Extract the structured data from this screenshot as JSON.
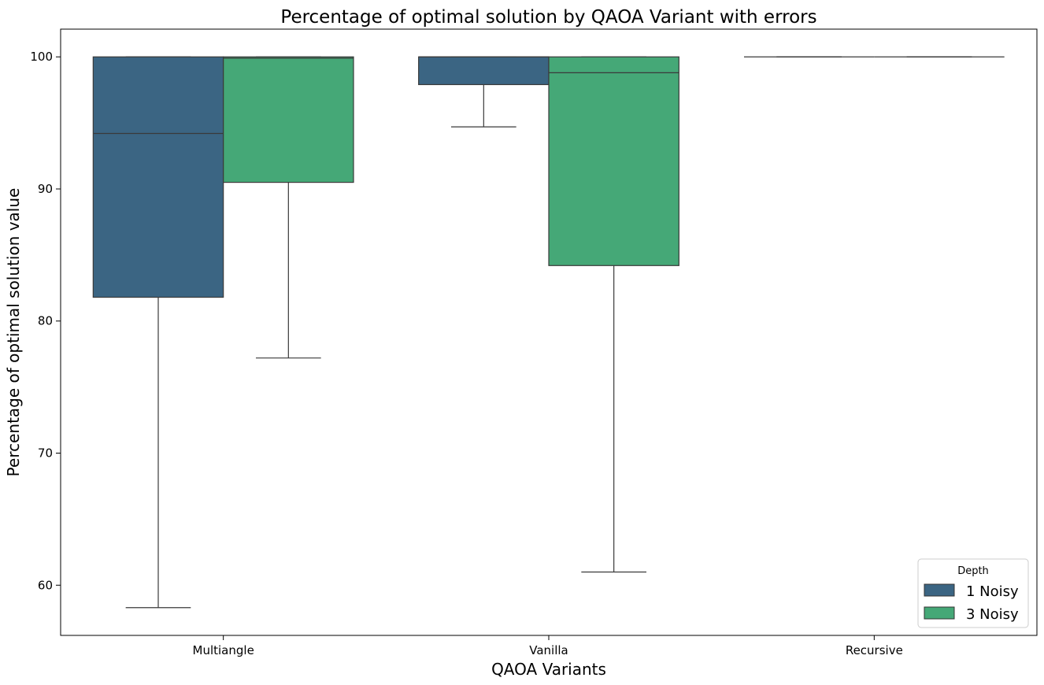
{
  "chart_data": {
    "type": "box",
    "title": "Percentage of optimal solution by QAOA Variant with errors",
    "xlabel": "QAOA Variants",
    "ylabel": "Percentage of optimal solution value",
    "categories": [
      "Multiangle",
      "Vanilla",
      "Recursive"
    ],
    "ylim": [
      56.2,
      102.1
    ],
    "yticks": [
      60,
      70,
      80,
      90,
      100
    ],
    "grid": false,
    "legend": {
      "title": "Depth",
      "placement": "bottom-right"
    },
    "series": [
      {
        "name": "1 Noisy",
        "color": "#3b6583",
        "boxes": [
          {
            "category": "Multiangle",
            "whislo": 58.3,
            "q1": 81.8,
            "med": 94.2,
            "q3": 100.0,
            "whishi": 100.0
          },
          {
            "category": "Vanilla",
            "whislo": 94.7,
            "q1": 97.9,
            "med": 100.0,
            "q3": 100.0,
            "whishi": 100.0
          },
          {
            "category": "Recursive",
            "whislo": 100.0,
            "q1": 100.0,
            "med": 100.0,
            "q3": 100.0,
            "whishi": 100.0
          }
        ]
      },
      {
        "name": "3 Noisy",
        "color": "#45a877",
        "boxes": [
          {
            "category": "Multiangle",
            "whislo": 77.2,
            "q1": 90.5,
            "med": 99.9,
            "q3": 100.0,
            "whishi": 100.0
          },
          {
            "category": "Vanilla",
            "whislo": 61.0,
            "q1": 84.2,
            "med": 98.8,
            "q3": 100.0,
            "whishi": 100.0
          },
          {
            "category": "Recursive",
            "whislo": 100.0,
            "q1": 100.0,
            "med": 100.0,
            "q3": 100.0,
            "whishi": 100.0
          }
        ]
      }
    ]
  }
}
